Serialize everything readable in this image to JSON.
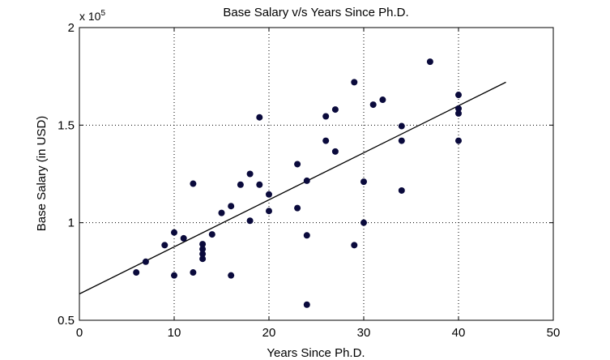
{
  "chart_data": {
    "type": "scatter",
    "title": "Base Salary v/s Years Since Ph.D.",
    "xlabel": "Years Since Ph.D.",
    "ylabel": "Base Salary (in USD)",
    "y_exponent_label": "x 10",
    "y_exponent_power": "5",
    "xlim": [
      0,
      50
    ],
    "ylim": [
      0.5,
      2.0
    ],
    "y_scale_factor": 100000,
    "x_ticks": [
      0,
      10,
      20,
      30,
      40,
      50
    ],
    "y_ticks": [
      0.5,
      1.0,
      1.5,
      2.0
    ],
    "x_tick_labels": [
      "0",
      "10",
      "20",
      "30",
      "40",
      "50"
    ],
    "y_tick_labels": [
      "0.5",
      "1",
      "1.5",
      "2"
    ],
    "grid": true,
    "grid_style": "dotted",
    "marker_color": "#0a0a3c",
    "line_color": "#000000",
    "points": [
      [
        6,
        0.745
      ],
      [
        7,
        0.8
      ],
      [
        9,
        0.885
      ],
      [
        10,
        0.95
      ],
      [
        10,
        0.73
      ],
      [
        11,
        0.92
      ],
      [
        12,
        1.2
      ],
      [
        12,
        0.745
      ],
      [
        13,
        0.89
      ],
      [
        13,
        0.865
      ],
      [
        13,
        0.84
      ],
      [
        13,
        0.815
      ],
      [
        14,
        0.94
      ],
      [
        15,
        1.05
      ],
      [
        16,
        1.085
      ],
      [
        16,
        0.73
      ],
      [
        17,
        1.195
      ],
      [
        18,
        1.25
      ],
      [
        18,
        1.01
      ],
      [
        19,
        1.54
      ],
      [
        19,
        1.195
      ],
      [
        20,
        1.145
      ],
      [
        20,
        1.06
      ],
      [
        23,
        1.3
      ],
      [
        23,
        1.075
      ],
      [
        24,
        1.215
      ],
      [
        24,
        0.935
      ],
      [
        24,
        0.58
      ],
      [
        26,
        1.545
      ],
      [
        26,
        1.42
      ],
      [
        27,
        1.58
      ],
      [
        27,
        1.365
      ],
      [
        29,
        1.72
      ],
      [
        29,
        0.885
      ],
      [
        30,
        1.21
      ],
      [
        30,
        1.0
      ],
      [
        31,
        1.605
      ],
      [
        32,
        1.63
      ],
      [
        34,
        1.495
      ],
      [
        34,
        1.42
      ],
      [
        34,
        1.165
      ],
      [
        37,
        1.825
      ],
      [
        40,
        1.655
      ],
      [
        40,
        1.585
      ],
      [
        40,
        1.56
      ],
      [
        40,
        1.42
      ]
    ],
    "fit_line": {
      "x": [
        0,
        45
      ],
      "y": [
        0.635,
        1.72
      ]
    }
  }
}
